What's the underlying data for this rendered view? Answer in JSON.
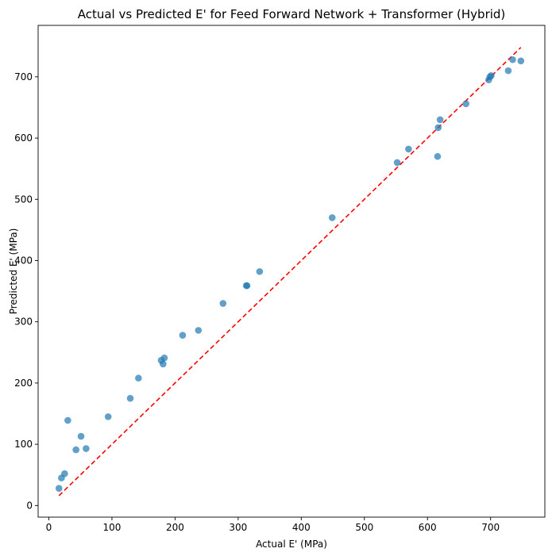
{
  "chart_data": {
    "type": "scatter",
    "title": "Actual vs Predicted E' for Feed Forward Network + Transformer (Hybrid)",
    "xlabel": "Actual E' (MPa)",
    "ylabel": "Predicted E' (MPa)",
    "xlim": [
      -17,
      786
    ],
    "ylim": [
      -19,
      784
    ],
    "xticks": [
      0,
      100,
      200,
      300,
      400,
      500,
      600,
      700
    ],
    "yticks": [
      0,
      100,
      200,
      300,
      400,
      500,
      600,
      700
    ],
    "grid": false,
    "series": [
      {
        "kind": "points",
        "color": "#1f77b4",
        "x": [
          16,
          20,
          25,
          30,
          43,
          51,
          59,
          94,
          129,
          142,
          178,
          181,
          183,
          212,
          237,
          276,
          313,
          314,
          334,
          449,
          552,
          570,
          616,
          617,
          620,
          661,
          697,
          699,
          701,
          728,
          735,
          748
        ],
        "y": [
          28,
          45,
          52,
          139,
          91,
          113,
          93,
          145,
          175,
          208,
          237,
          231,
          241,
          278,
          286,
          330,
          359,
          359,
          382,
          470,
          560,
          582,
          570,
          617,
          630,
          656,
          695,
          700,
          702,
          710,
          728,
          726
        ]
      },
      {
        "kind": "reference-line",
        "color": "#ff0000",
        "style": "dashed",
        "x": [
          16,
          748
        ],
        "y": [
          16,
          748
        ]
      }
    ]
  }
}
